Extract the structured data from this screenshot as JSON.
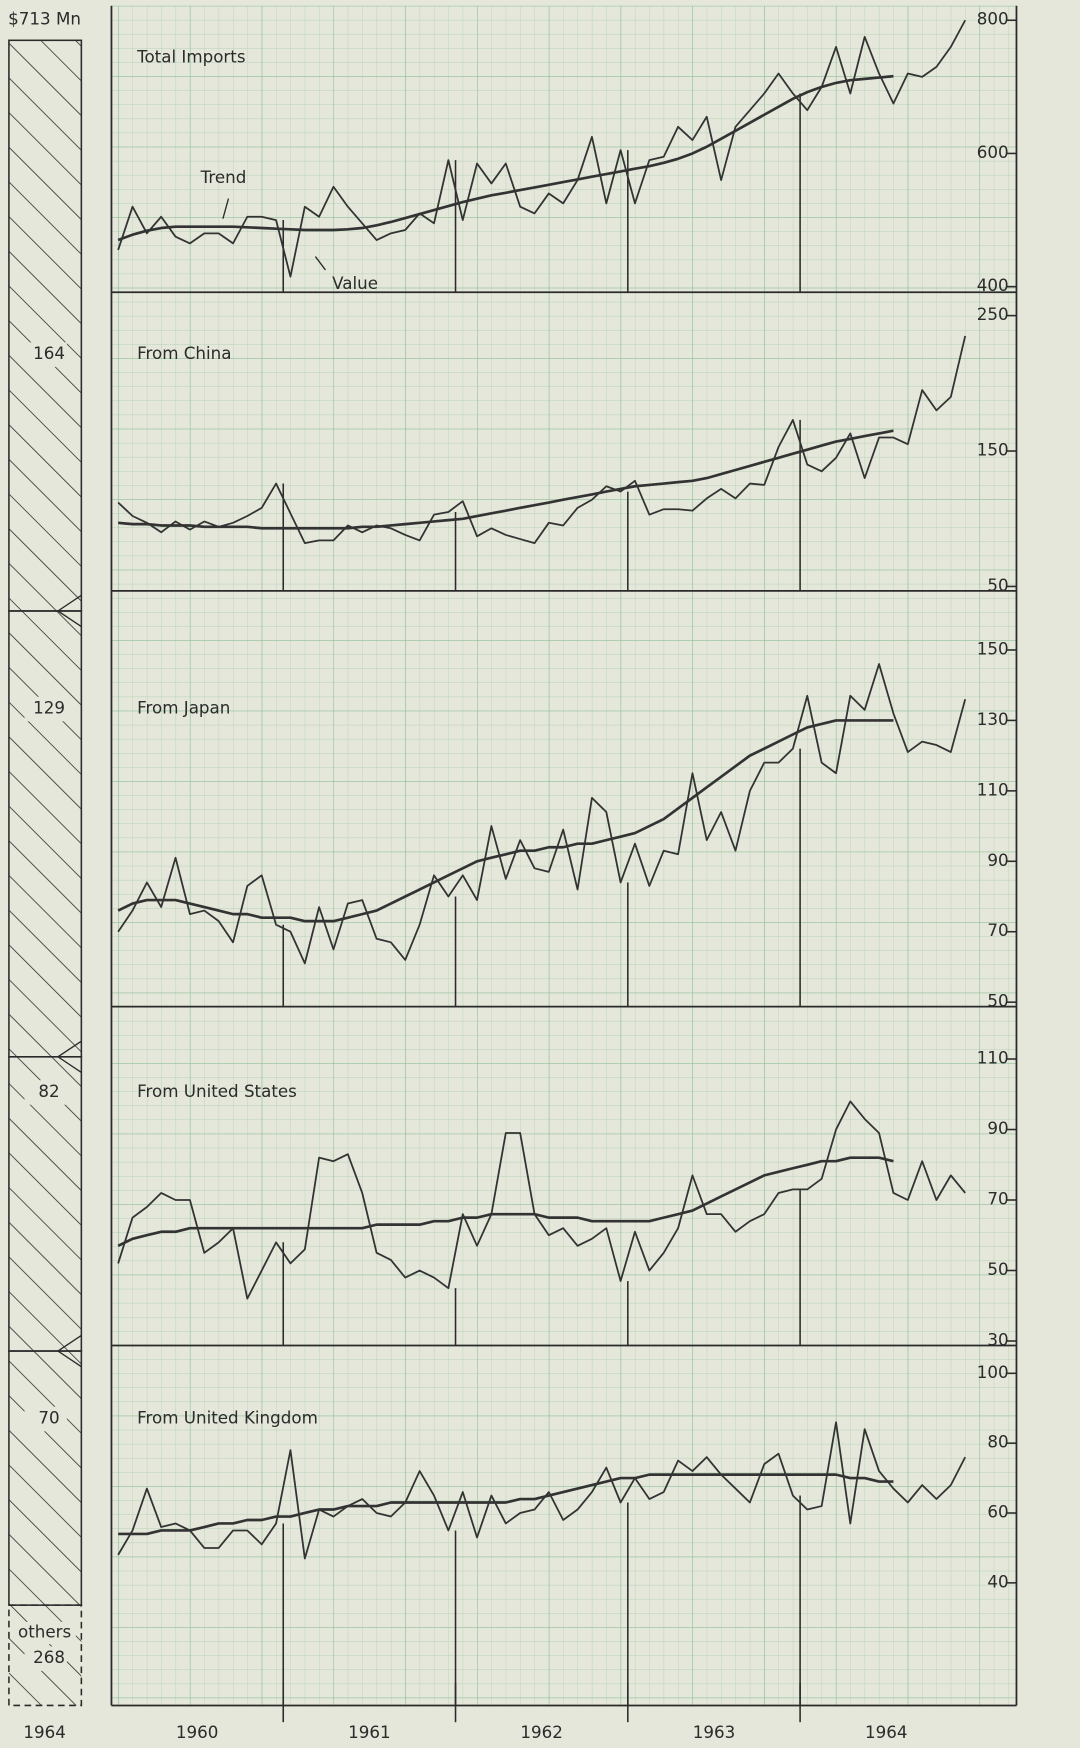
{
  "side_bar": {
    "total_label": "$713 Mn",
    "year": "1964",
    "segments": [
      {
        "value": 164
      },
      {
        "value": 129
      },
      {
        "value": 82
      },
      {
        "value": 70
      },
      {
        "label": "others",
        "value": 268
      }
    ]
  },
  "chart_data": [
    {
      "type": "line",
      "title": "Total Imports",
      "ylim": [
        400,
        800
      ],
      "yticks": [
        400,
        600,
        800
      ],
      "grid": true,
      "series": [
        {
          "name": "Value",
          "color": "#333333",
          "values": [
            455,
            520,
            480,
            505,
            475,
            465,
            480,
            480,
            465,
            505,
            505,
            500,
            415,
            520,
            505,
            550,
            520,
            495,
            470,
            480,
            485,
            510,
            495,
            590,
            500,
            585,
            555,
            585,
            520,
            510,
            540,
            525,
            560,
            625,
            525,
            605,
            525,
            590,
            595,
            640,
            620,
            655,
            560,
            640,
            665,
            690,
            720,
            690,
            665,
            700,
            760,
            690,
            775,
            720,
            675,
            720,
            715,
            730,
            760,
            800
          ]
        },
        {
          "name": "Trend",
          "color": "#333333",
          "values": [
            470,
            478,
            484,
            488,
            490,
            490,
            490,
            490,
            490,
            489,
            488,
            487,
            486,
            485,
            485,
            485,
            486,
            488,
            492,
            497,
            503,
            509,
            515,
            521,
            527,
            532,
            537,
            541,
            545,
            549,
            553,
            557,
            561,
            565,
            569,
            573,
            577,
            581,
            586,
            592,
            600,
            610,
            622,
            634,
            646,
            658,
            670,
            682,
            692,
            700,
            706,
            710,
            712,
            714,
            716,
            null,
            null,
            null,
            null,
            null
          ]
        }
      ]
    },
    {
      "type": "line",
      "title": "From China",
      "ylim": [
        50,
        250
      ],
      "yticks": [
        50,
        150,
        250
      ],
      "grid": true,
      "series": [
        {
          "color": "#333333",
          "values": [
            112,
            102,
            97,
            90,
            98,
            92,
            98,
            94,
            97,
            102,
            108,
            126,
            104,
            82,
            84,
            84,
            95,
            90,
            95,
            93,
            88,
            84,
            103,
            105,
            113,
            87,
            93,
            88,
            85,
            82,
            97,
            95,
            108,
            114,
            124,
            120,
            128,
            103,
            107,
            107,
            106,
            115,
            122,
            115,
            126,
            125,
            153,
            173,
            140,
            135,
            145,
            163,
            130,
            160,
            160,
            155,
            195,
            180,
            190,
            235
          ]
        },
        {
          "color": "#333333",
          "values": [
            97,
            96,
            96,
            95,
            95,
            95,
            94,
            94,
            94,
            94,
            93,
            93,
            93,
            93,
            93,
            93,
            93,
            94,
            94,
            95,
            96,
            97,
            98,
            99,
            100,
            102,
            104,
            106,
            108,
            110,
            112,
            114,
            116,
            118,
            120,
            122,
            124,
            125,
            126,
            127,
            128,
            130,
            133,
            136,
            139,
            142,
            145,
            148,
            151,
            154,
            157,
            159,
            161,
            163,
            165,
            null,
            null,
            null,
            null,
            null
          ]
        }
      ]
    },
    {
      "type": "line",
      "title": "From Japan",
      "ylim": [
        50,
        150
      ],
      "yticks": [
        50,
        70,
        90,
        110,
        130,
        150
      ],
      "grid": true,
      "series": [
        {
          "color": "#333333",
          "values": [
            70,
            76,
            84,
            77,
            91,
            75,
            76,
            73,
            67,
            83,
            86,
            72,
            70,
            61,
            77,
            65,
            78,
            79,
            68,
            67,
            62,
            72,
            86,
            80,
            86,
            79,
            100,
            85,
            96,
            88,
            87,
            99,
            82,
            108,
            104,
            84,
            95,
            83,
            93,
            92,
            115,
            96,
            104,
            93,
            110,
            118,
            118,
            122,
            137,
            118,
            115,
            137,
            133,
            146,
            132,
            121,
            124,
            123,
            121,
            136
          ]
        },
        {
          "color": "#333333",
          "values": [
            76,
            78,
            79,
            79,
            79,
            78,
            77,
            76,
            75,
            75,
            74,
            74,
            74,
            73,
            73,
            73,
            74,
            75,
            76,
            78,
            80,
            82,
            84,
            86,
            88,
            90,
            91,
            92,
            93,
            93,
            94,
            94,
            95,
            95,
            96,
            97,
            98,
            100,
            102,
            105,
            108,
            111,
            114,
            117,
            120,
            122,
            124,
            126,
            128,
            129,
            130,
            130,
            130,
            130,
            130,
            null,
            null,
            null,
            null,
            null
          ]
        }
      ]
    },
    {
      "type": "line",
      "title": "From United States",
      "ylim": [
        30,
        110
      ],
      "yticks": [
        30,
        50,
        70,
        90,
        110
      ],
      "grid": true,
      "series": [
        {
          "color": "#333333",
          "values": [
            52,
            65,
            68,
            72,
            70,
            70,
            55,
            58,
            62,
            42,
            50,
            58,
            52,
            56,
            82,
            81,
            83,
            72,
            55,
            53,
            48,
            50,
            48,
            45,
            66,
            57,
            66,
            89,
            89,
            66,
            60,
            62,
            57,
            59,
            62,
            47,
            61,
            50,
            55,
            62,
            77,
            66,
            66,
            61,
            64,
            66,
            72,
            73,
            73,
            76,
            90,
            98,
            93,
            89,
            72,
            70,
            81,
            70,
            77,
            72
          ]
        },
        {
          "color": "#333333",
          "values": [
            57,
            59,
            60,
            61,
            61,
            62,
            62,
            62,
            62,
            62,
            62,
            62,
            62,
            62,
            62,
            62,
            62,
            62,
            63,
            63,
            63,
            63,
            64,
            64,
            65,
            65,
            66,
            66,
            66,
            66,
            65,
            65,
            65,
            64,
            64,
            64,
            64,
            64,
            65,
            66,
            67,
            69,
            71,
            73,
            75,
            77,
            78,
            79,
            80,
            81,
            81,
            82,
            82,
            82,
            81,
            null,
            null,
            null,
            null,
            null
          ]
        }
      ]
    },
    {
      "type": "line",
      "title": "From United Kingdom",
      "ylim": [
        40,
        100
      ],
      "yticks": [
        40,
        60,
        80,
        100
      ],
      "grid": true,
      "categories": [
        null,
        null,
        null,
        null,
        null,
        "1960",
        null,
        null,
        null,
        null,
        null,
        null,
        null,
        null,
        null,
        null,
        null,
        "1961",
        null,
        null,
        null,
        null,
        null,
        null,
        null,
        null,
        null,
        null,
        null,
        "1962",
        null,
        null,
        null,
        null,
        null,
        null,
        null,
        null,
        null,
        null,
        null,
        "1963",
        null,
        null,
        null,
        null,
        null,
        null,
        null,
        null,
        null,
        null,
        null,
        "1964",
        null,
        null,
        null,
        null,
        null,
        null
      ],
      "series": [
        {
          "color": "#333333",
          "values": [
            48,
            55,
            67,
            56,
            57,
            55,
            50,
            50,
            55,
            55,
            51,
            57,
            78,
            47,
            61,
            59,
            62,
            64,
            60,
            59,
            63,
            72,
            65,
            55,
            66,
            53,
            65,
            57,
            60,
            61,
            66,
            58,
            61,
            66,
            73,
            63,
            70,
            64,
            66,
            75,
            72,
            76,
            71,
            67,
            63,
            74,
            77,
            65,
            61,
            62,
            86,
            57,
            84,
            72,
            67,
            63,
            68,
            64,
            68,
            76
          ]
        },
        {
          "color": "#333333",
          "values": [
            54,
            54,
            54,
            55,
            55,
            55,
            56,
            57,
            57,
            58,
            58,
            59,
            59,
            60,
            61,
            61,
            62,
            62,
            62,
            63,
            63,
            63,
            63,
            63,
            63,
            63,
            63,
            63,
            64,
            64,
            65,
            66,
            67,
            68,
            69,
            70,
            70,
            71,
            71,
            71,
            71,
            71,
            71,
            71,
            71,
            71,
            71,
            71,
            71,
            71,
            71,
            70,
            70,
            69,
            69,
            null,
            null,
            null,
            null,
            null
          ]
        }
      ]
    }
  ]
}
